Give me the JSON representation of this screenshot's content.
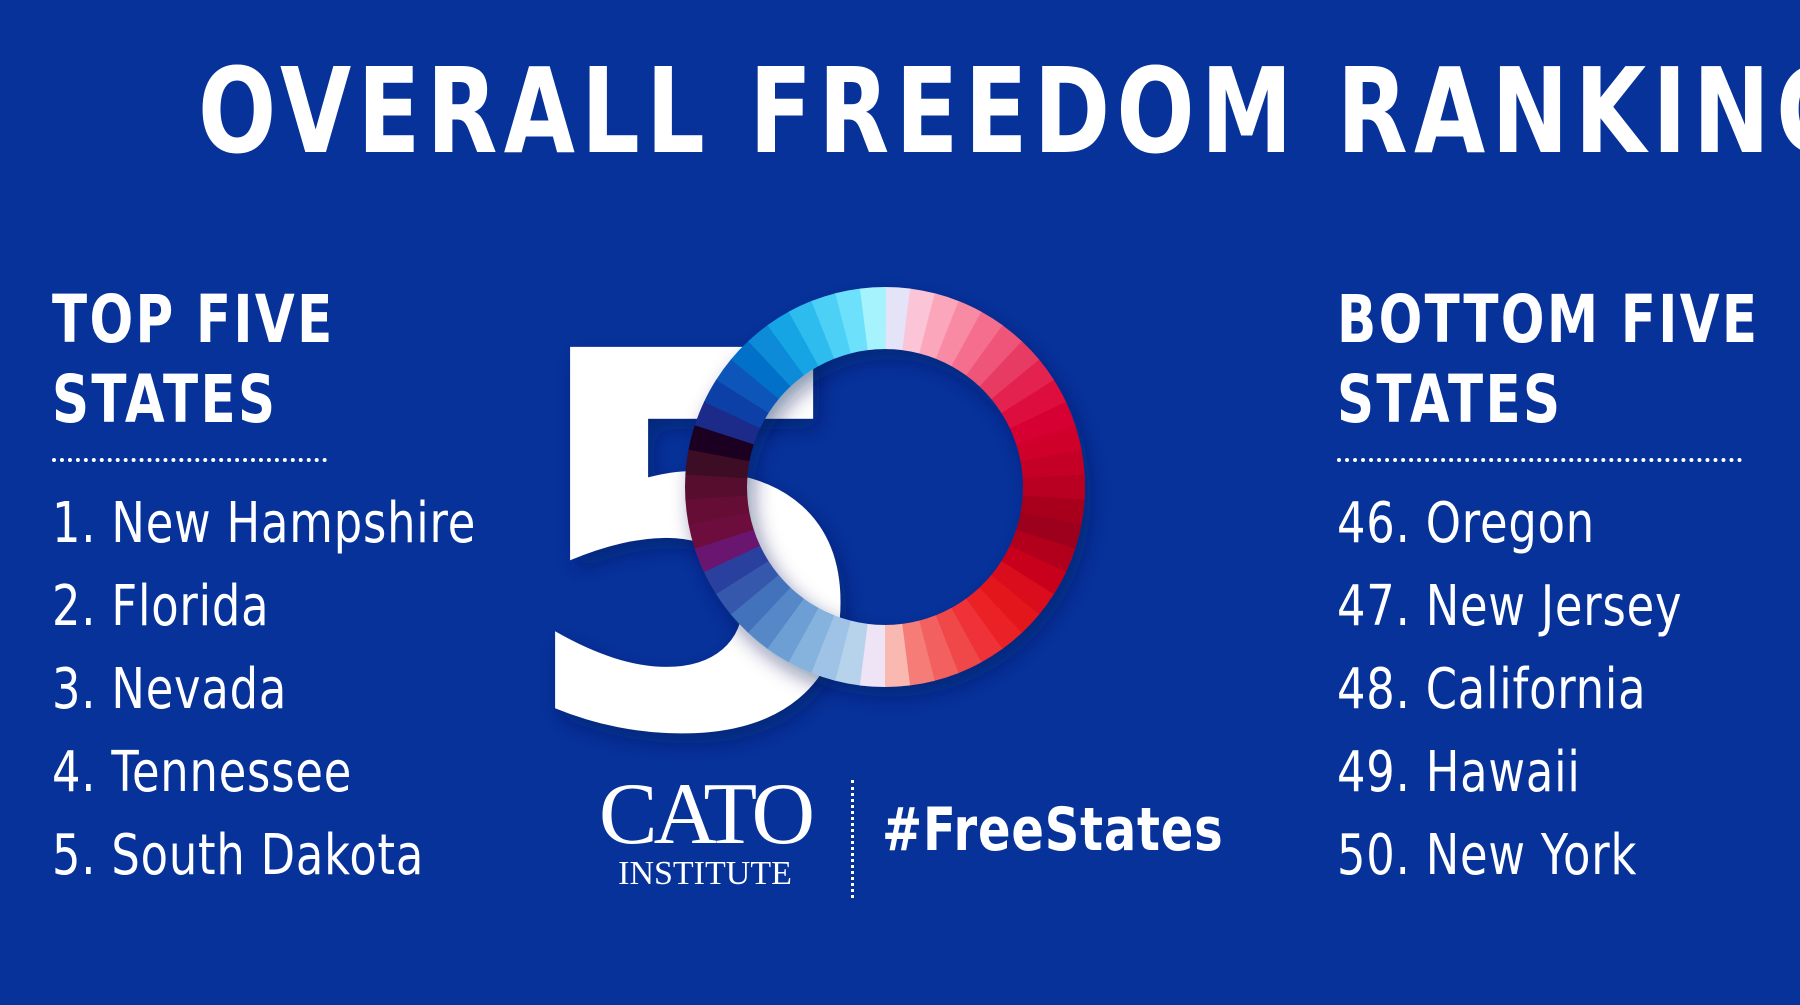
{
  "title": "OVERALL FREEDOM RANKING",
  "top": {
    "heading_line1": "TOP FIVE",
    "heading_line2": "STATES",
    "items": [
      "1. New Hampshire",
      "2. Florida",
      "3. Nevada",
      "4. Tennessee",
      "5. South Dakota"
    ]
  },
  "bottom": {
    "heading_line1": "BOTTOM FIVE",
    "heading_line2": "STATES",
    "items": [
      "46. Oregon",
      "47. New Jersey",
      "48. California",
      "49. Hawaii",
      "50. New York"
    ]
  },
  "graphic": {
    "big_digit": "5",
    "ring_segments": 50
  },
  "logo": {
    "line1": "CATO",
    "line2": "INSTITUTE"
  },
  "hashtag": "#FreeStates",
  "colors": {
    "background": "#06329a",
    "text": "#ffffff",
    "ring": [
      "#e4e3f7",
      "#fbc4d7",
      "#fca6bc",
      "#f98aa4",
      "#f56e8e",
      "#ee5478",
      "#e83a64",
      "#e3234f",
      "#dd103e",
      "#d60533",
      "#cf002c",
      "#c50026",
      "#b90020",
      "#a8001c",
      "#9d001a",
      "#b2001a",
      "#c8001c",
      "#d9081f",
      "#e3131f",
      "#ea2026",
      "#ee3138",
      "#f0464a",
      "#f2605f",
      "#f57b77",
      "#f9b9b0",
      "#efe3f6",
      "#b7d3ec",
      "#9ec3e6",
      "#86b2de",
      "#6e9fd4",
      "#5688c8",
      "#4272bc",
      "#3458ad",
      "#2b3f9e",
      "#6a1770",
      "#6c0d3e",
      "#650b36",
      "#56092f",
      "#3d0728",
      "#1a0620",
      "#1b2a8a",
      "#0f3fa6",
      "#0c55b8",
      "#0270c8",
      "#078bd8",
      "#15a5e4",
      "#2fbcee",
      "#4dd0f6",
      "#6de0fb",
      "#a6f2fd"
    ]
  }
}
